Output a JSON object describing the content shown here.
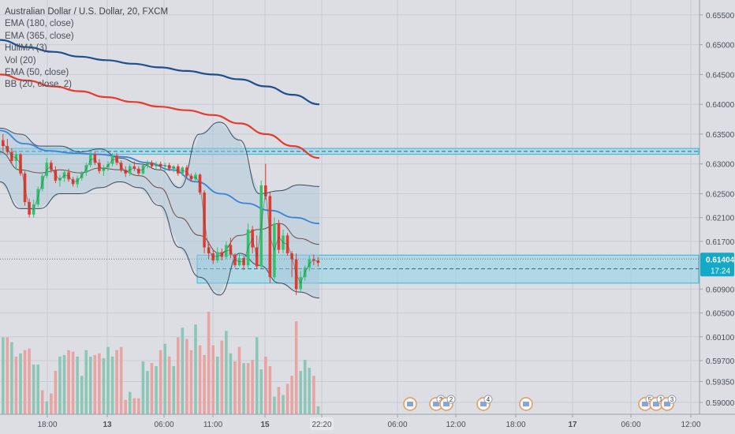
{
  "chart_data": {
    "type": "candlestick",
    "title": "Australian Dollar / U.S. Dollar, 20, FXCM",
    "indicators": [
      {
        "label": "EMA (180, close)",
        "color": "#e8392d"
      },
      {
        "label": "EMA (365, close)",
        "color": "#1f4e8c"
      },
      {
        "label": "HullMA (3)",
        "color": "#4a4f59"
      },
      {
        "label": "Vol (20)",
        "color": "#4a4f59"
      },
      {
        "label": "EMA (50, close)",
        "color": "#3b82d8"
      },
      {
        "label": "BB (20, close, 2)",
        "color": "#3a4a5e"
      }
    ],
    "ylim": [
      0.588,
      0.6575
    ],
    "y_ticks": [
      "0.65500",
      "0.65000",
      "0.64500",
      "0.64000",
      "0.63500",
      "0.63000",
      "0.62500",
      "0.62100",
      "0.61700",
      "0.60900",
      "0.60500",
      "0.60100",
      "0.59700",
      "0.59350",
      "0.59000"
    ],
    "x_ticks": [
      "18:00",
      "13",
      "06:00",
      "11:00",
      "15",
      "22:20",
      "06:00",
      "12:00",
      "18:00",
      "17",
      "06:00",
      "12:00"
    ],
    "current_price": "0.61404",
    "countdown": "17:24",
    "candles": [
      [
        0.634,
        0.635,
        0.6322,
        0.633
      ],
      [
        0.633,
        0.6342,
        0.6315,
        0.632
      ],
      [
        0.632,
        0.6326,
        0.63,
        0.6305
      ],
      [
        0.6305,
        0.632,
        0.629,
        0.6316
      ],
      [
        0.6316,
        0.6318,
        0.628,
        0.6284
      ],
      [
        0.6284,
        0.6288,
        0.623,
        0.6236
      ],
      [
        0.6236,
        0.6242,
        0.621,
        0.6215
      ],
      [
        0.6215,
        0.624,
        0.621,
        0.6232
      ],
      [
        0.6232,
        0.6262,
        0.6228,
        0.6258
      ],
      [
        0.6258,
        0.6286,
        0.6254,
        0.628
      ],
      [
        0.628,
        0.631,
        0.6276,
        0.6302
      ],
      [
        0.6302,
        0.6306,
        0.6285,
        0.629
      ],
      [
        0.629,
        0.6296,
        0.6268,
        0.6272
      ],
      [
        0.6272,
        0.6282,
        0.6262,
        0.6276
      ],
      [
        0.6276,
        0.629,
        0.627,
        0.6286
      ],
      [
        0.6286,
        0.6292,
        0.627,
        0.6274
      ],
      [
        0.6274,
        0.6278,
        0.6262,
        0.6266
      ],
      [
        0.6266,
        0.628,
        0.626,
        0.6276
      ],
      [
        0.6276,
        0.6288,
        0.6272,
        0.6285
      ],
      [
        0.6285,
        0.6302,
        0.628,
        0.6298
      ],
      [
        0.6298,
        0.6322,
        0.6294,
        0.6316
      ],
      [
        0.6316,
        0.632,
        0.6298,
        0.6302
      ],
      [
        0.6302,
        0.6308,
        0.6284,
        0.6288
      ],
      [
        0.6288,
        0.6298,
        0.628,
        0.6294
      ],
      [
        0.6294,
        0.6304,
        0.6288,
        0.63
      ],
      [
        0.63,
        0.6318,
        0.6296,
        0.6314
      ],
      [
        0.6314,
        0.6318,
        0.6298,
        0.6302
      ],
      [
        0.6302,
        0.6306,
        0.6286,
        0.629
      ],
      [
        0.629,
        0.6296,
        0.6278,
        0.6284
      ],
      [
        0.6284,
        0.63,
        0.628,
        0.6296
      ],
      [
        0.6296,
        0.6304,
        0.6288,
        0.6292
      ],
      [
        0.6292,
        0.6296,
        0.628,
        0.6284
      ],
      [
        0.6284,
        0.63,
        0.6282,
        0.6298
      ],
      [
        0.6298,
        0.6306,
        0.6292,
        0.6302
      ],
      [
        0.6302,
        0.6306,
        0.6292,
        0.6296
      ],
      [
        0.6296,
        0.6304,
        0.629,
        0.63
      ],
      [
        0.63,
        0.6304,
        0.629,
        0.6296
      ],
      [
        0.6296,
        0.6302,
        0.6288,
        0.6298
      ],
      [
        0.6298,
        0.6302,
        0.6288,
        0.6292
      ],
      [
        0.6292,
        0.6298,
        0.6286,
        0.6296
      ],
      [
        0.6296,
        0.63,
        0.628,
        0.6284
      ],
      [
        0.6284,
        0.6296,
        0.628,
        0.6294
      ],
      [
        0.6294,
        0.6298,
        0.6276,
        0.628
      ],
      [
        0.628,
        0.6284,
        0.627,
        0.6274
      ],
      [
        0.6274,
        0.6286,
        0.627,
        0.6282
      ],
      [
        0.6282,
        0.6284,
        0.6248,
        0.6252
      ],
      [
        0.6252,
        0.6256,
        0.615,
        0.616
      ],
      [
        0.616,
        0.617,
        0.614,
        0.615
      ],
      [
        0.615,
        0.6156,
        0.6132,
        0.6138
      ],
      [
        0.6138,
        0.616,
        0.6134,
        0.6152
      ],
      [
        0.6152,
        0.6158,
        0.6138,
        0.6144
      ],
      [
        0.6144,
        0.617,
        0.614,
        0.6164
      ],
      [
        0.6164,
        0.6176,
        0.6142,
        0.6148
      ],
      [
        0.6148,
        0.615,
        0.6126,
        0.613
      ],
      [
        0.613,
        0.615,
        0.6128,
        0.6142
      ],
      [
        0.6142,
        0.6146,
        0.6122,
        0.613
      ],
      [
        0.613,
        0.62,
        0.6126,
        0.619
      ],
      [
        0.619,
        0.6196,
        0.615,
        0.616
      ],
      [
        0.616,
        0.618,
        0.6124,
        0.6128
      ],
      [
        0.6128,
        0.6272,
        0.6124,
        0.6264
      ],
      [
        0.6264,
        0.63,
        0.624,
        0.6246
      ],
      [
        0.6246,
        0.6252,
        0.61,
        0.611
      ],
      [
        0.611,
        0.621,
        0.6106,
        0.62
      ],
      [
        0.62,
        0.6206,
        0.615,
        0.6156
      ],
      [
        0.6156,
        0.619,
        0.615,
        0.618
      ],
      [
        0.618,
        0.6184,
        0.6146,
        0.615
      ],
      [
        0.615,
        0.6154,
        0.611,
        0.614
      ],
      [
        0.614,
        0.615,
        0.608,
        0.609
      ],
      [
        0.609,
        0.612,
        0.6086,
        0.611
      ],
      [
        0.611,
        0.613,
        0.6104,
        0.6126
      ],
      [
        0.6126,
        0.6146,
        0.612,
        0.614
      ],
      [
        0.614,
        0.6148,
        0.613,
        0.6138
      ],
      [
        0.6138,
        0.6144,
        0.6128,
        0.6134
      ]
    ],
    "volume": [
      48,
      48,
      45,
      36,
      38,
      40,
      41,
      31,
      31,
      15,
      8,
      13,
      27,
      36,
      37,
      40,
      39,
      36,
      24,
      40,
      36,
      37,
      38,
      35,
      42,
      36,
      40,
      42,
      9,
      14,
      10,
      10,
      33,
      27,
      32,
      30,
      40,
      44,
      36,
      30,
      48,
      54,
      47,
      40,
      56,
      43,
      37,
      64,
      43,
      36,
      46,
      52,
      38,
      33,
      42,
      32,
      32,
      34,
      48,
      28,
      36,
      30,
      11,
      17,
      12,
      19,
      24,
      58,
      27,
      34,
      29,
      24,
      5
    ],
    "volume_colors": [
      "g",
      "r",
      "g",
      "r",
      "g",
      "r",
      "r",
      "g",
      "g",
      "r",
      "g",
      "r",
      "r",
      "g",
      "g",
      "r",
      "r",
      "g",
      "g",
      "g",
      "g",
      "r",
      "r",
      "g",
      "g",
      "g",
      "r",
      "r",
      "r",
      "g",
      "r",
      "r",
      "g",
      "g",
      "r",
      "g",
      "r",
      "g",
      "r",
      "g",
      "r",
      "g",
      "r",
      "r",
      "g",
      "r",
      "r",
      "r",
      "r",
      "g",
      "r",
      "g",
      "g",
      "r",
      "r",
      "g",
      "r",
      "r",
      "g",
      "g",
      "r",
      "r",
      "g",
      "r",
      "g",
      "r",
      "r",
      "r",
      "g",
      "g",
      "g",
      "r",
      "g"
    ],
    "ema_180": [
      0.645,
      0.644,
      0.643,
      0.6422,
      0.6412,
      0.6404,
      0.6396,
      0.639,
      0.6382,
      0.6368,
      0.635,
      0.633,
      0.631
    ],
    "ema_365": [
      0.6508,
      0.6496,
      0.6488,
      0.648,
      0.6474,
      0.6468,
      0.6462,
      0.6456,
      0.645,
      0.6442,
      0.643,
      0.6416,
      0.64
    ],
    "ema_50": [
      0.6356,
      0.6334,
      0.6322,
      0.6318,
      0.6316,
      0.6312,
      0.6302,
      0.629,
      0.627,
      0.625,
      0.6234,
      0.6222,
      0.621,
      0.62
    ],
    "bb_upper": [
      0.636,
      0.635,
      0.633,
      0.633,
      0.632,
      0.6325,
      0.631,
      0.63,
      0.629,
      0.626,
      0.635,
      0.637,
      0.634,
      0.625,
      0.6255,
      0.6265,
      0.6262
    ],
    "bb_lower": [
      0.627,
      0.6225,
      0.6225,
      0.625,
      0.625,
      0.626,
      0.627,
      0.626,
      0.623,
      0.616,
      0.611,
      0.608,
      0.615,
      0.613,
      0.61,
      0.6085,
      0.6075
    ],
    "bb_mid": [
      0.632,
      0.629,
      0.6285,
      0.629,
      0.6285,
      0.6293,
      0.629,
      0.628,
      0.626,
      0.621,
      0.618,
      0.615,
      0.618,
      0.619,
      0.62,
      0.6175,
      0.6165
    ],
    "resistance_zone": [
      0.6326,
      0.6316
    ],
    "resistance_line": 0.6321,
    "support_zone": [
      0.6147,
      0.61
    ],
    "support_line": 0.6124,
    "current_line": 0.61404,
    "events": [
      {
        "label": ""
      },
      {
        "label": "3"
      },
      {
        "label": "2"
      },
      {
        "label": "4"
      },
      {
        "label": ""
      },
      {
        "label": "5"
      },
      {
        "label": "1"
      },
      {
        "label": "3"
      }
    ],
    "colors": {
      "background": "#dcdee3",
      "grid": "#c9ccd3",
      "up": "#2fc46b",
      "down": "#e23b2e",
      "volume_up": "#8cc6b6",
      "volume_down": "#e8a3a3",
      "zone_fill": "#8dd6e8",
      "zone_border": "#38b4d6",
      "axis_text": "#4a4f59",
      "price_label": "#14a9c6"
    }
  }
}
